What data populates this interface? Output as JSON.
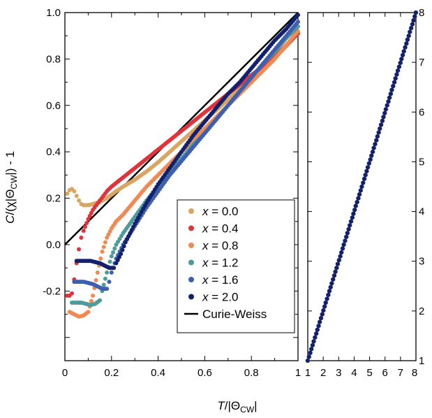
{
  "xlabel": {
    "main": "T",
    "slash": "/|Θ",
    "sub": "CW",
    "end": "|"
  },
  "ylabel": {
    "main": "C",
    "open": "/(χ|Θ",
    "sub": "CW",
    "end": "|) - 1"
  },
  "chart_data": [
    {
      "type": "scatter",
      "panel": "left",
      "xlim": [
        0,
        1
      ],
      "ylim": [
        -0.5,
        1.0
      ],
      "xticks": [
        "0",
        "0.2",
        "0.4",
        "0.6",
        "0.8",
        "1"
      ],
      "yticks": [
        "-0.2",
        "0.0",
        "0.2",
        "0.4",
        "0.6",
        "0.8",
        "1.0"
      ],
      "legend_position": "lower-right",
      "series": [
        {
          "name": "x = 0.0",
          "color": "#d9a561",
          "x": [
            0.01,
            0.02,
            0.03,
            0.04,
            0.05,
            0.06,
            0.07,
            0.08,
            0.1,
            0.12,
            0.15,
            0.18,
            0.2,
            0.22,
            0.25,
            0.3,
            0.35,
            0.4,
            0.45,
            0.5,
            0.55,
            0.6,
            0.65,
            0.7,
            0.75,
            0.8,
            0.85,
            0.9,
            0.95,
            1.0
          ],
          "y": [
            0.22,
            0.235,
            0.24,
            0.23,
            0.21,
            0.19,
            0.175,
            0.17,
            0.17,
            0.175,
            0.185,
            0.2,
            0.215,
            0.23,
            0.25,
            0.28,
            0.315,
            0.355,
            0.4,
            0.445,
            0.49,
            0.535,
            0.58,
            0.625,
            0.67,
            0.715,
            0.76,
            0.805,
            0.855,
            0.91
          ]
        },
        {
          "name": "x = 0.4",
          "color": "#e0333a",
          "x": [
            0.01,
            0.02,
            0.03,
            0.04,
            0.05,
            0.06,
            0.07,
            0.08,
            0.1,
            0.12,
            0.15,
            0.18,
            0.2,
            0.25,
            0.3,
            0.35,
            0.4,
            0.45,
            0.5,
            0.55,
            0.6,
            0.65,
            0.7,
            0.75,
            0.8,
            0.85,
            0.9,
            0.95,
            1.0
          ],
          "y": [
            -0.22,
            -0.22,
            -0.21,
            -0.15,
            -0.08,
            -0.02,
            0.03,
            0.06,
            0.11,
            0.15,
            0.19,
            0.23,
            0.25,
            0.29,
            0.33,
            0.37,
            0.41,
            0.45,
            0.49,
            0.53,
            0.57,
            0.61,
            0.65,
            0.69,
            0.73,
            0.77,
            0.81,
            0.86,
            0.91
          ]
        },
        {
          "name": "x = 0.8",
          "color": "#f08a52",
          "x": [
            0.02,
            0.04,
            0.06,
            0.08,
            0.1,
            0.12,
            0.14,
            0.16,
            0.18,
            0.2,
            0.22,
            0.25,
            0.3,
            0.35,
            0.4,
            0.45,
            0.5,
            0.55,
            0.6,
            0.65,
            0.7,
            0.75,
            0.8,
            0.85,
            0.9,
            0.95,
            1.0
          ],
          "y": [
            -0.29,
            -0.3,
            -0.31,
            -0.305,
            -0.29,
            -0.22,
            -0.12,
            -0.03,
            0.03,
            0.07,
            0.1,
            0.13,
            0.19,
            0.25,
            0.3,
            0.35,
            0.4,
            0.45,
            0.5,
            0.55,
            0.6,
            0.65,
            0.7,
            0.75,
            0.8,
            0.86,
            0.92
          ]
        },
        {
          "name": "x = 1.2",
          "color": "#4e9b9b",
          "x": [
            0.03,
            0.05,
            0.07,
            0.09,
            0.11,
            0.13,
            0.15,
            0.16,
            0.18,
            0.2,
            0.22,
            0.25,
            0.3,
            0.35,
            0.4,
            0.45,
            0.5,
            0.55,
            0.6,
            0.65,
            0.7,
            0.75,
            0.8,
            0.85,
            0.9,
            0.95,
            1.0
          ],
          "y": [
            -0.25,
            -0.25,
            -0.25,
            -0.255,
            -0.26,
            -0.255,
            -0.24,
            -0.2,
            -0.12,
            -0.05,
            0.0,
            0.05,
            0.12,
            0.19,
            0.25,
            0.31,
            0.37,
            0.43,
            0.48,
            0.54,
            0.6,
            0.66,
            0.72,
            0.78,
            0.83,
            0.89,
            0.94
          ]
        },
        {
          "name": "x = 1.6",
          "color": "#3e5fb0",
          "x": [
            0.04,
            0.06,
            0.08,
            0.1,
            0.12,
            0.14,
            0.16,
            0.18,
            0.19,
            0.2,
            0.22,
            0.25,
            0.3,
            0.35,
            0.4,
            0.45,
            0.5,
            0.55,
            0.6,
            0.65,
            0.7,
            0.75,
            0.8,
            0.85,
            0.9,
            0.95,
            1.0
          ],
          "y": [
            -0.16,
            -0.16,
            -0.16,
            -0.165,
            -0.17,
            -0.18,
            -0.19,
            -0.19,
            -0.16,
            -0.12,
            -0.06,
            0.0,
            0.08,
            0.16,
            0.23,
            0.3,
            0.36,
            0.42,
            0.48,
            0.54,
            0.6,
            0.66,
            0.72,
            0.78,
            0.84,
            0.9,
            0.96
          ]
        },
        {
          "name": "x = 2.0",
          "color": "#12206e",
          "x": [
            0.05,
            0.07,
            0.09,
            0.11,
            0.13,
            0.15,
            0.17,
            0.19,
            0.21,
            0.22,
            0.24,
            0.26,
            0.3,
            0.35,
            0.4,
            0.45,
            0.5,
            0.55,
            0.6,
            0.65,
            0.7,
            0.75,
            0.8,
            0.85,
            0.9,
            0.95,
            1.0
          ],
          "y": [
            -0.07,
            -0.07,
            -0.07,
            -0.07,
            -0.075,
            -0.08,
            -0.09,
            -0.1,
            -0.1,
            -0.08,
            -0.04,
            0.01,
            0.09,
            0.18,
            0.26,
            0.33,
            0.4,
            0.47,
            0.53,
            0.59,
            0.65,
            0.7,
            0.76,
            0.82,
            0.88,
            0.93,
            0.99
          ]
        }
      ],
      "reference_line": {
        "name": "Curie-Weiss",
        "color": "#000000",
        "x": [
          0,
          1
        ],
        "y": [
          0,
          1
        ]
      }
    },
    {
      "type": "scatter",
      "panel": "right",
      "xlim": [
        1,
        8
      ],
      "ylim": [
        1,
        8
      ],
      "xticks": [
        "1",
        "2",
        "3",
        "4",
        "5",
        "6",
        "7",
        "8"
      ],
      "yticks": [
        "1",
        "2",
        "3",
        "4",
        "5",
        "6",
        "7",
        "8"
      ],
      "series": [
        {
          "name": "x = 0.0",
          "color": "#d9a561"
        },
        {
          "name": "x = 0.4",
          "color": "#e0333a"
        },
        {
          "name": "x = 0.8",
          "color": "#f08a52"
        },
        {
          "name": "x = 1.2",
          "color": "#4e9b9b"
        },
        {
          "name": "x = 1.6",
          "color": "#3e5fb0"
        },
        {
          "name": "x = 2.0",
          "color": "#12206e"
        }
      ],
      "trend": {
        "x": [
          1,
          8
        ],
        "y": [
          1,
          8
        ]
      }
    }
  ]
}
